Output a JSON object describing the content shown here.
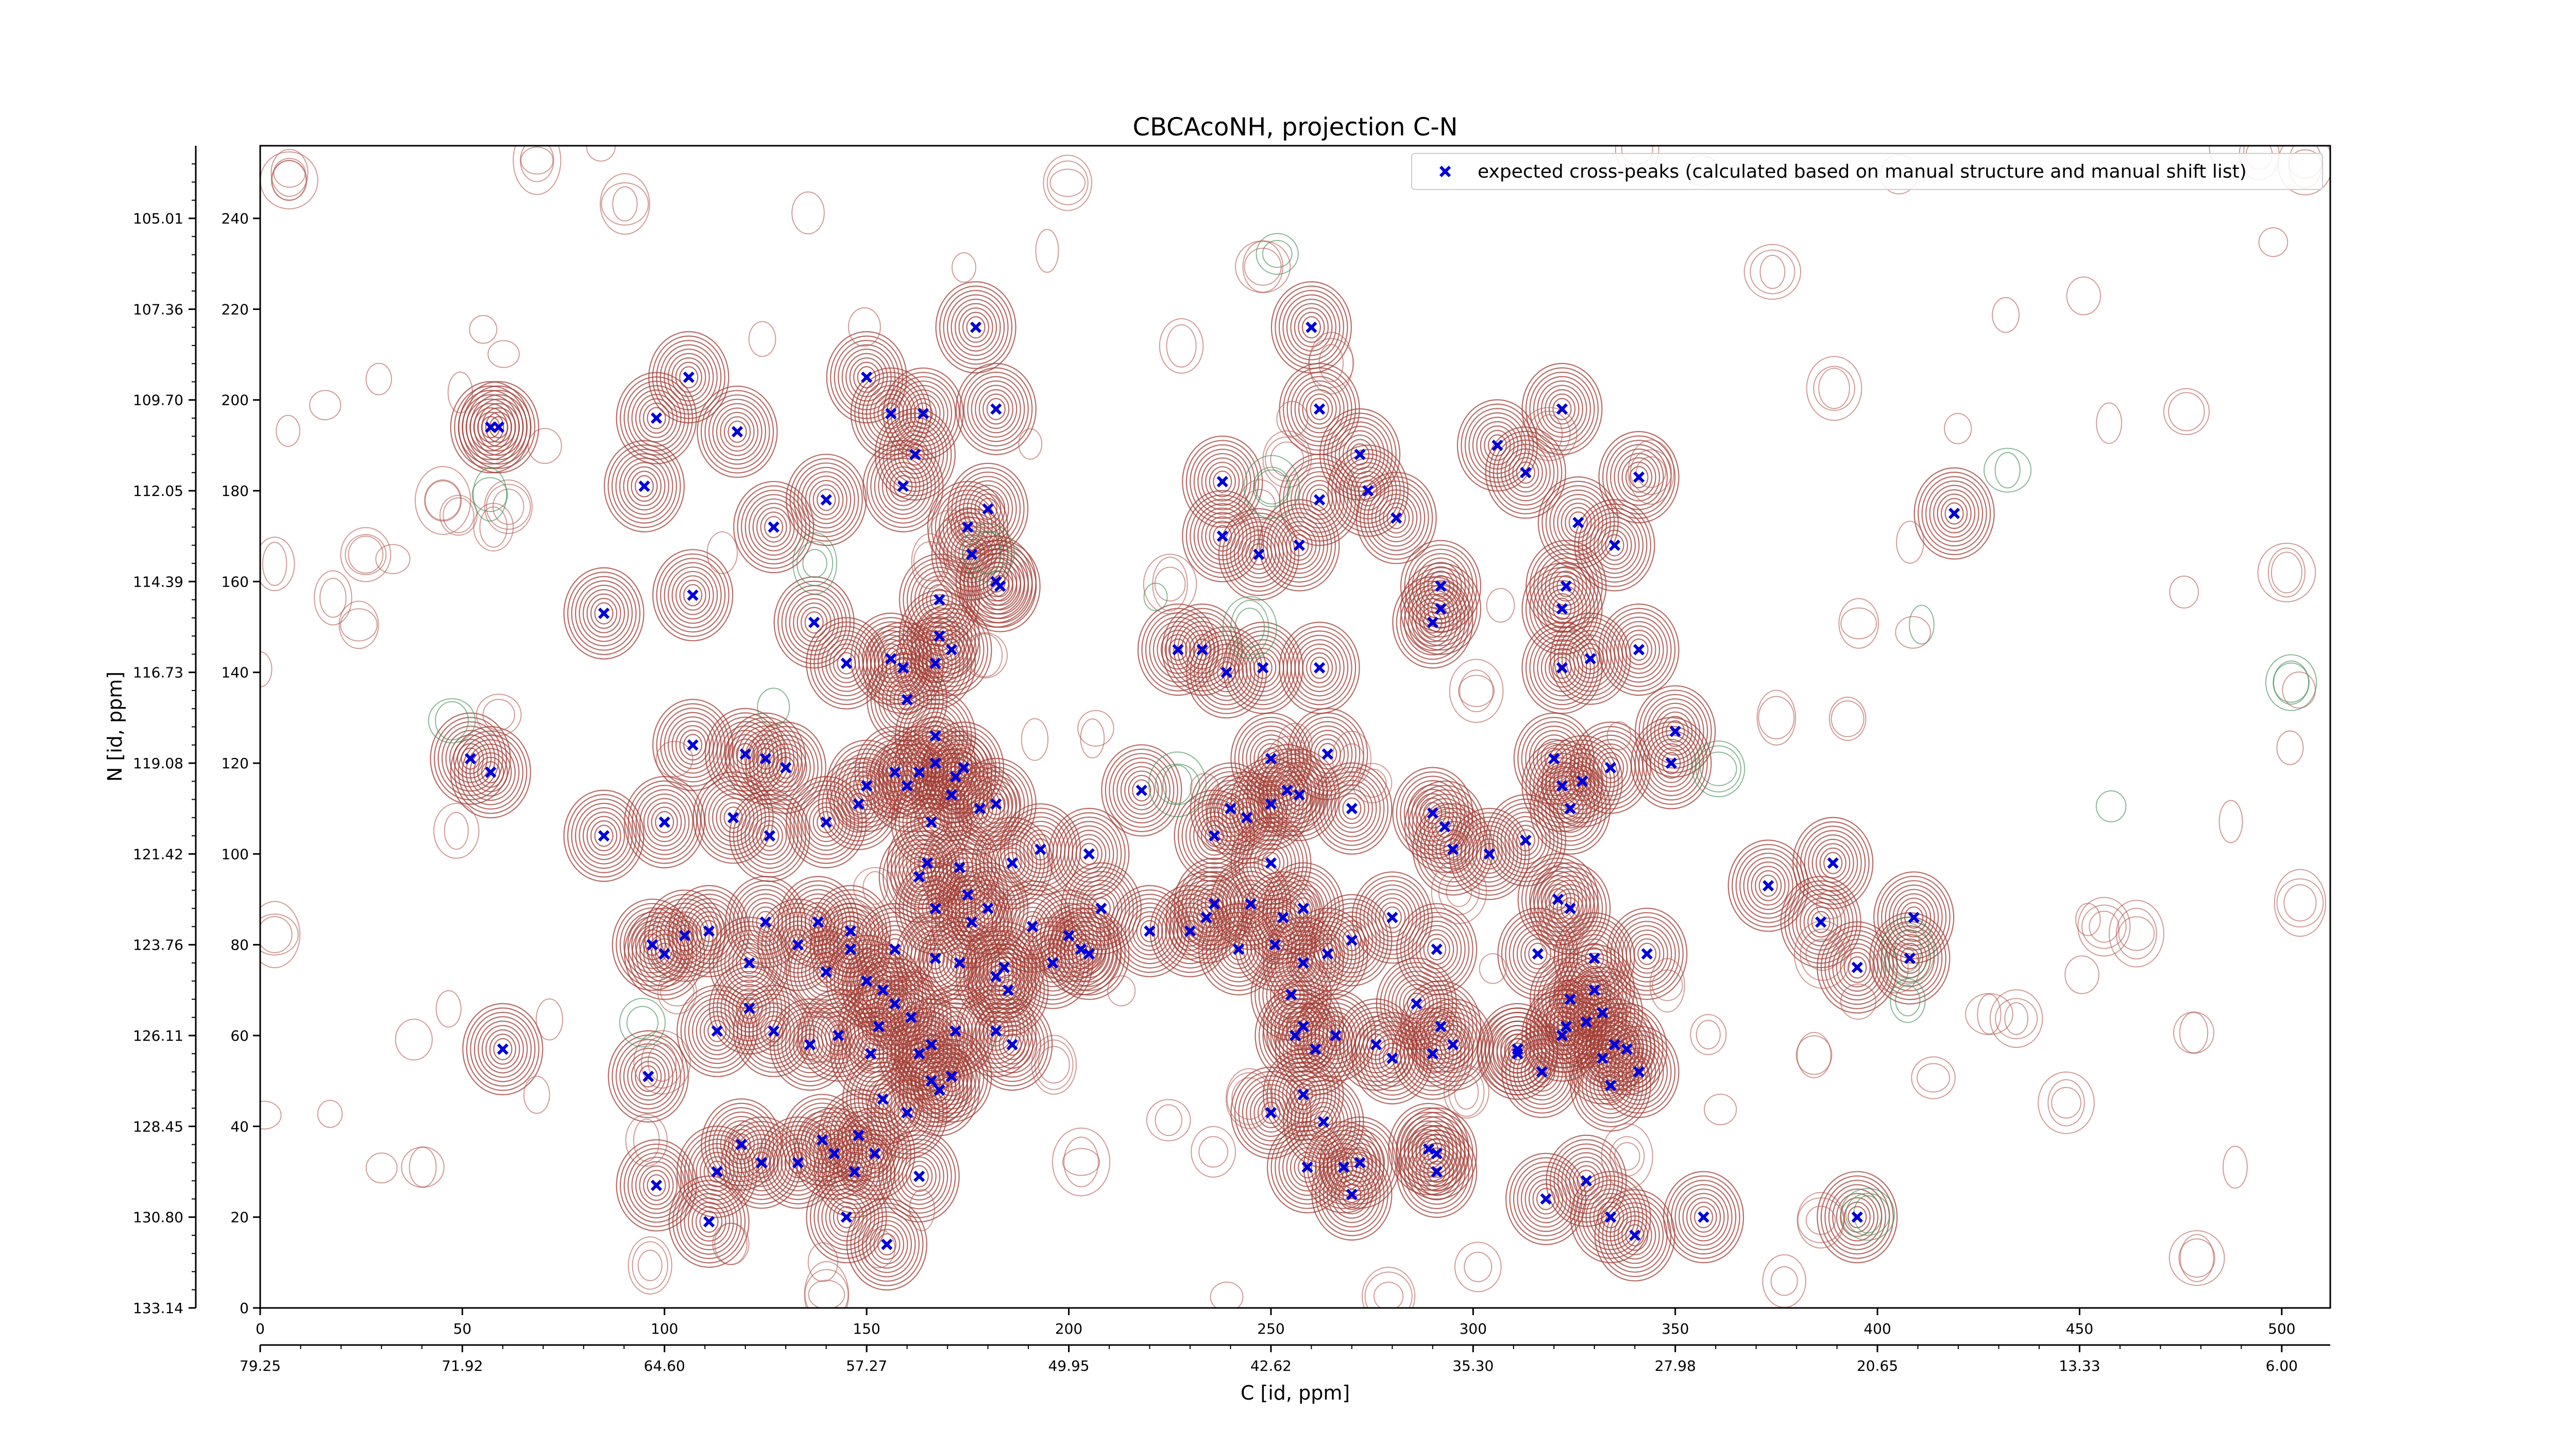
{
  "chart_data": {
    "type": "scatter",
    "title": "CBCAcoNH, projection C-N",
    "xlabel": "C [id, ppm]",
    "ylabel": "N [id, ppm]",
    "x_index_range": [
      0,
      512
    ],
    "y_index_range": [
      0,
      256
    ],
    "x_index_ticks": [
      "0",
      "50",
      "100",
      "150",
      "200",
      "250",
      "300",
      "350",
      "400",
      "450",
      "500"
    ],
    "x_ppm_ticks": [
      "79.25",
      "71.92",
      "64.60",
      "57.27",
      "49.95",
      "42.62",
      "35.30",
      "27.98",
      "20.65",
      "13.33",
      "6.00"
    ],
    "y_index_ticks": [
      "0",
      "20",
      "40",
      "60",
      "80",
      "100",
      "120",
      "140",
      "160",
      "180",
      "200",
      "220",
      "240"
    ],
    "y_ppm_ticks": [
      "133.14",
      "130.80",
      "128.45",
      "126.11",
      "123.76",
      "121.42",
      "119.08",
      "116.73",
      "114.39",
      "112.05",
      "109.70",
      "107.36",
      "105.01"
    ],
    "legend_position": "top-right",
    "series": [
      {
        "name": "expected cross-peaks (calculated based on manual structure and manual shift list)",
        "color": "#0000dd",
        "marker": "x",
        "points": [
          [
            59,
            194
          ],
          [
            98,
            196
          ],
          [
            106,
            205
          ],
          [
            118,
            193
          ],
          [
            95,
            181
          ],
          [
            127,
            172
          ],
          [
            140,
            178
          ],
          [
            150,
            205
          ],
          [
            156,
            197
          ],
          [
            162,
            188
          ],
          [
            159,
            181
          ],
          [
            164,
            197
          ],
          [
            182,
            198
          ],
          [
            177,
            216
          ],
          [
            180,
            176
          ],
          [
            175,
            172
          ],
          [
            176,
            166
          ],
          [
            182,
            160
          ],
          [
            262,
            198
          ],
          [
            260,
            216
          ],
          [
            238,
            182
          ],
          [
            238,
            170
          ],
          [
            247,
            166
          ],
          [
            257,
            168
          ],
          [
            262,
            178
          ],
          [
            272,
            188
          ],
          [
            274,
            180
          ],
          [
            281,
            174
          ],
          [
            306,
            190
          ],
          [
            313,
            184
          ],
          [
            322,
            198
          ],
          [
            341,
            183
          ],
          [
            326,
            173
          ],
          [
            335,
            168
          ],
          [
            419,
            175
          ],
          [
            57,
            194
          ],
          [
            85,
            153
          ],
          [
            107,
            157
          ],
          [
            137,
            151
          ],
          [
            145,
            142
          ],
          [
            156,
            143
          ],
          [
            159,
            141
          ],
          [
            167,
            142
          ],
          [
            168,
            148
          ],
          [
            168,
            156
          ],
          [
            171,
            145
          ],
          [
            183,
            159
          ],
          [
            227,
            145
          ],
          [
            233,
            145
          ],
          [
            239,
            140
          ],
          [
            248,
            141
          ],
          [
            262,
            141
          ],
          [
            290,
            151
          ],
          [
            292,
            159
          ],
          [
            292,
            154
          ],
          [
            322,
            141
          ],
          [
            322,
            154
          ],
          [
            323,
            159
          ],
          [
            329,
            143
          ],
          [
            341,
            145
          ],
          [
            350,
            127
          ],
          [
            52,
            121
          ],
          [
            57,
            118
          ],
          [
            85,
            104
          ],
          [
            100,
            107
          ],
          [
            107,
            124
          ],
          [
            117,
            108
          ],
          [
            120,
            122
          ],
          [
            125,
            121
          ],
          [
            126,
            104
          ],
          [
            130,
            119
          ],
          [
            140,
            107
          ],
          [
            148,
            111
          ],
          [
            157,
            118
          ],
          [
            160,
            115
          ],
          [
            163,
            118
          ],
          [
            167,
            120
          ],
          [
            166,
            107
          ],
          [
            171,
            113
          ],
          [
            172,
            117
          ],
          [
            174,
            119
          ],
          [
            178,
            110
          ],
          [
            182,
            111
          ],
          [
            186,
            98
          ],
          [
            193,
            101
          ],
          [
            167,
            126
          ],
          [
            160,
            134
          ],
          [
            150,
            115
          ],
          [
            218,
            114
          ],
          [
            236,
            104
          ],
          [
            240,
            110
          ],
          [
            244,
            108
          ],
          [
            250,
            111
          ],
          [
            250,
            121
          ],
          [
            254,
            114
          ],
          [
            257,
            113
          ],
          [
            264,
            122
          ],
          [
            270,
            110
          ],
          [
            290,
            109
          ],
          [
            293,
            106
          ],
          [
            295,
            101
          ],
          [
            304,
            100
          ],
          [
            313,
            103
          ],
          [
            324,
            110
          ],
          [
            327,
            116
          ],
          [
            320,
            121
          ],
          [
            322,
            115
          ],
          [
            334,
            119
          ],
          [
            349,
            120
          ],
          [
            389,
            98
          ],
          [
            409,
            86
          ],
          [
            205,
            100
          ],
          [
            111,
            83
          ],
          [
            125,
            85
          ],
          [
            138,
            85
          ],
          [
            146,
            83
          ],
          [
            157,
            79
          ],
          [
            167,
            88
          ],
          [
            176,
            85
          ],
          [
            163,
            95
          ],
          [
            165,
            98
          ],
          [
            173,
            97
          ],
          [
            175,
            91
          ],
          [
            180,
            88
          ],
          [
            191,
            84
          ],
          [
            200,
            82
          ],
          [
            205,
            78
          ],
          [
            208,
            88
          ],
          [
            220,
            83
          ],
          [
            234,
            86
          ],
          [
            245,
            89
          ],
          [
            250,
            98
          ],
          [
            253,
            86
          ],
          [
            258,
            88
          ],
          [
            270,
            81
          ],
          [
            280,
            86
          ],
          [
            291,
            79
          ],
          [
            316,
            78
          ],
          [
            321,
            90
          ],
          [
            324,
            88
          ],
          [
            330,
            77
          ],
          [
            330,
            70
          ],
          [
            332,
            65
          ],
          [
            343,
            78
          ],
          [
            373,
            93
          ],
          [
            386,
            85
          ],
          [
            395,
            75
          ],
          [
            408,
            77
          ],
          [
            97,
            80
          ],
          [
            100,
            78
          ],
          [
            105,
            82
          ],
          [
            121,
            76
          ],
          [
            133,
            80
          ],
          [
            140,
            74
          ],
          [
            146,
            79
          ],
          [
            150,
            72
          ],
          [
            154,
            70
          ],
          [
            157,
            67
          ],
          [
            161,
            64
          ],
          [
            167,
            77
          ],
          [
            173,
            76
          ],
          [
            182,
            73
          ],
          [
            184,
            75
          ],
          [
            185,
            70
          ],
          [
            196,
            76
          ],
          [
            203,
            79
          ],
          [
            230,
            83
          ],
          [
            236,
            89
          ],
          [
            242,
            79
          ],
          [
            251,
            80
          ],
          [
            255,
            69
          ],
          [
            258,
            76
          ],
          [
            264,
            78
          ],
          [
            266,
            60
          ],
          [
            276,
            58
          ],
          [
            280,
            55
          ],
          [
            286,
            67
          ],
          [
            292,
            62
          ],
          [
            311,
            57
          ],
          [
            324,
            68
          ],
          [
            323,
            62
          ],
          [
            328,
            63
          ],
          [
            332,
            55
          ],
          [
            335,
            58
          ],
          [
            60,
            57
          ],
          [
            96,
            51
          ],
          [
            113,
            61
          ],
          [
            121,
            66
          ],
          [
            127,
            61
          ],
          [
            136,
            58
          ],
          [
            143,
            60
          ],
          [
            151,
            56
          ],
          [
            153,
            62
          ],
          [
            163,
            56
          ],
          [
            166,
            58
          ],
          [
            166,
            50
          ],
          [
            172,
            61
          ],
          [
            182,
            61
          ],
          [
            186,
            58
          ],
          [
            256,
            60
          ],
          [
            258,
            62
          ],
          [
            261,
            57
          ],
          [
            290,
            56
          ],
          [
            295,
            58
          ],
          [
            311,
            56
          ],
          [
            317,
            52
          ],
          [
            322,
            60
          ],
          [
            338,
            57
          ],
          [
            341,
            52
          ],
          [
            334,
            49
          ],
          [
            119,
            36
          ],
          [
            124,
            32
          ],
          [
            139,
            37
          ],
          [
            142,
            34
          ],
          [
            147,
            30
          ],
          [
            152,
            34
          ],
          [
            148,
            38
          ],
          [
            154,
            46
          ],
          [
            160,
            43
          ],
          [
            168,
            48
          ],
          [
            171,
            51
          ],
          [
            250,
            43
          ],
          [
            258,
            47
          ],
          [
            263,
            41
          ],
          [
            268,
            31
          ],
          [
            272,
            32
          ],
          [
            289,
            35
          ],
          [
            291,
            34
          ],
          [
            334,
            20
          ],
          [
            111,
            19
          ],
          [
            98,
            27
          ],
          [
            113,
            30
          ],
          [
            133,
            32
          ],
          [
            145,
            20
          ],
          [
            155,
            14
          ],
          [
            163,
            29
          ],
          [
            259,
            31
          ],
          [
            270,
            25
          ],
          [
            291,
            30
          ],
          [
            318,
            24
          ],
          [
            328,
            28
          ],
          [
            340,
            16
          ],
          [
            357,
            20
          ],
          [
            395,
            20
          ]
        ]
      }
    ]
  }
}
